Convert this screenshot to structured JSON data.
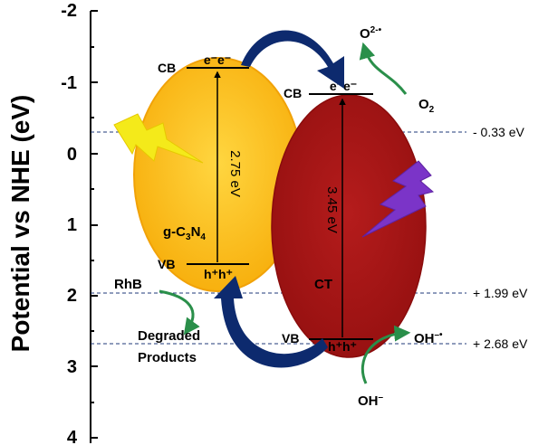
{
  "axis": {
    "ylabel": "Potential vs NHE (eV)",
    "ticks": [
      "-2",
      "-1",
      "0",
      "1",
      "2",
      "3",
      "4"
    ]
  },
  "reference_lines": [
    {
      "label": "- 0.33 eV",
      "value": -0.33
    },
    {
      "label": "+ 1.99 eV",
      "value": 1.99
    },
    {
      "label": "+ 2.68 eV",
      "value": 2.68
    }
  ],
  "gcn": {
    "name_prefix": "g-C",
    "sub1": "3",
    "name_mid": "N",
    "sub2": "4",
    "cb_label": "CB",
    "vb_label": "VB",
    "electrons": "e⁻e⁻",
    "holes": "h⁺h⁺",
    "gap": "2.75 eV",
    "cb_value": -1.2,
    "vb_value": 1.55,
    "color": "#f9b915"
  },
  "ct": {
    "name": "CT",
    "cb_label": "CB",
    "vb_label": "VB",
    "electrons": "e⁻e⁻",
    "holes": "h⁺h⁺",
    "gap": "3.45 eV",
    "cb_value": -0.82,
    "vb_value": 2.63,
    "color": "#a81616"
  },
  "species": {
    "o2": "O",
    "o2_sub": "2",
    "superoxide": "O",
    "superoxide_sup": "2-•",
    "oh_minus": "OH",
    "oh_minus_sup": "–",
    "oh_radical": "OH",
    "oh_radical_sup": "–•",
    "rhb": "RhB",
    "degraded_line1": "Degraded",
    "degraded_line2": "Products"
  },
  "colors": {
    "arrow_blue": "#0d2a6e",
    "arrow_green": "#2a8f4a",
    "dashed_line": "#1f3a78",
    "lightning_yellow": "#f4ea1a",
    "lightning_purple": "#7b34c8"
  }
}
